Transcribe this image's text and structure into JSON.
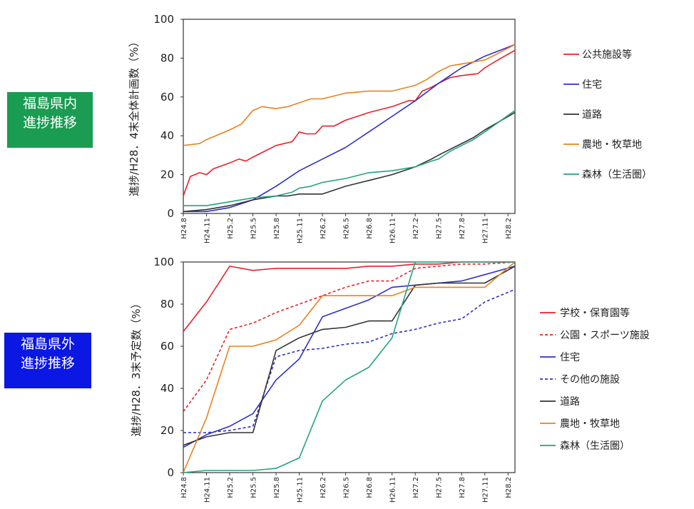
{
  "labels": {
    "inside": [
      "福島県内",
      "進捗推移"
    ],
    "outside": [
      "福島県外",
      "進捗推移"
    ]
  },
  "chart_data": [
    {
      "type": "line",
      "ylabel": "進捗/H28．4末全体計画数（%）",
      "ylim": [
        0,
        100
      ],
      "yticks": [
        0,
        20,
        40,
        60,
        80,
        100
      ],
      "categories": [
        "H24.8",
        "H24.11",
        "H25.2",
        "H25.5",
        "H25.8",
        "H25.11",
        "H26.2",
        "H26.5",
        "H26.8",
        "H26.11",
        "H27.2",
        "H27.5",
        "H27.8",
        "H27.11",
        "H28.2"
      ],
      "legend_position": "right",
      "series": [
        {
          "name": "公共施設等",
          "color": "#e8202a",
          "dash": false,
          "points": [
            [
              0,
              9
            ],
            [
              0.3,
              19
            ],
            [
              0.7,
              21
            ],
            [
              1,
              20
            ],
            [
              1.3,
              23
            ],
            [
              2,
              26
            ],
            [
              2.4,
              28
            ],
            [
              2.7,
              27
            ],
            [
              3,
              29
            ],
            [
              3.5,
              32
            ],
            [
              4,
              35
            ],
            [
              4.7,
              37
            ],
            [
              5,
              42
            ],
            [
              5.3,
              41
            ],
            [
              5.7,
              41
            ],
            [
              6,
              45
            ],
            [
              6.5,
              45
            ],
            [
              7,
              48
            ],
            [
              7.5,
              50
            ],
            [
              8,
              52
            ],
            [
              9,
              55
            ],
            [
              9.7,
              58
            ],
            [
              10,
              58
            ],
            [
              10.3,
              63
            ],
            [
              10.7,
              65
            ],
            [
              11,
              67
            ],
            [
              11.5,
              70
            ],
            [
              12,
              71
            ],
            [
              12.7,
              72
            ],
            [
              13,
              75
            ],
            [
              13.7,
              80
            ],
            [
              14.3,
              84
            ]
          ]
        },
        {
          "name": "住宅",
          "color": "#2e2fc9",
          "dash": false,
          "points": [
            [
              0,
              1
            ],
            [
              1,
              1
            ],
            [
              2,
              3
            ],
            [
              3,
              7
            ],
            [
              4,
              14
            ],
            [
              5,
              22
            ],
            [
              6,
              28
            ],
            [
              7,
              34
            ],
            [
              8,
              42
            ],
            [
              9,
              50
            ],
            [
              10,
              58
            ],
            [
              11,
              67
            ],
            [
              12,
              75
            ],
            [
              13,
              81
            ],
            [
              14.3,
              87
            ]
          ]
        },
        {
          "name": "道路",
          "color": "#333333",
          "dash": false,
          "points": [
            [
              0,
              1
            ],
            [
              1,
              2
            ],
            [
              2,
              4
            ],
            [
              3,
              7
            ],
            [
              3.5,
              8
            ],
            [
              4,
              9
            ],
            [
              4.5,
              9
            ],
            [
              5,
              10
            ],
            [
              6,
              10
            ],
            [
              7,
              14
            ],
            [
              8,
              17
            ],
            [
              9,
              20
            ],
            [
              10,
              24
            ],
            [
              10.7,
              28
            ],
            [
              11,
              30
            ],
            [
              11.5,
              33
            ],
            [
              12,
              36
            ],
            [
              12.5,
              39
            ],
            [
              13,
              43
            ],
            [
              14.3,
              52
            ]
          ]
        },
        {
          "name": "農地・牧草地",
          "color": "#e8821e",
          "dash": false,
          "points": [
            [
              0,
              35
            ],
            [
              0.7,
              36
            ],
            [
              1,
              38
            ],
            [
              2,
              43
            ],
            [
              2.5,
              46
            ],
            [
              3,
              53
            ],
            [
              3.4,
              55
            ],
            [
              4,
              54
            ],
            [
              4.5,
              55
            ],
            [
              5,
              57
            ],
            [
              5.5,
              59
            ],
            [
              6,
              59
            ],
            [
              7,
              62
            ],
            [
              8,
              63
            ],
            [
              9,
              63
            ],
            [
              10,
              66
            ],
            [
              10.5,
              69
            ],
            [
              11,
              73
            ],
            [
              11.5,
              76
            ],
            [
              12,
              77
            ],
            [
              12.5,
              78
            ],
            [
              13,
              79
            ],
            [
              13.5,
              82
            ],
            [
              14.3,
              87
            ]
          ]
        },
        {
          "name": "森林（生活圏）",
          "color": "#22a383",
          "dash": false,
          "points": [
            [
              0,
              4
            ],
            [
              1,
              4
            ],
            [
              2,
              6
            ],
            [
              3,
              8
            ],
            [
              4,
              9
            ],
            [
              4.7,
              11
            ],
            [
              5,
              13
            ],
            [
              5.5,
              14
            ],
            [
              6,
              16
            ],
            [
              7,
              18
            ],
            [
              8,
              21
            ],
            [
              9,
              22
            ],
            [
              10,
              24
            ],
            [
              10.7,
              27
            ],
            [
              11,
              28
            ],
            [
              11.5,
              32
            ],
            [
              12,
              35
            ],
            [
              12.5,
              38
            ],
            [
              13,
              42
            ],
            [
              14.3,
              53
            ]
          ]
        }
      ]
    },
    {
      "type": "line",
      "ylabel": "進捗/H28．3末予定数（%）",
      "ylim": [
        0,
        100
      ],
      "yticks": [
        0,
        20,
        40,
        60,
        80,
        100
      ],
      "categories": [
        "H24.8",
        "H24.11",
        "H25.2",
        "H25.5",
        "H25.8",
        "H25.11",
        "H26.2",
        "H26.5",
        "H26.8",
        "H26.11",
        "H27.2",
        "H27.5",
        "H27.8",
        "H27.11",
        "H28.2"
      ],
      "legend_position": "right",
      "series": [
        {
          "name": "学校・保育園等",
          "color": "#e8202a",
          "dash": false,
          "points": [
            [
              0,
              67
            ],
            [
              1,
              81
            ],
            [
              2,
              98
            ],
            [
              3,
              96
            ],
            [
              4,
              97
            ],
            [
              5,
              97
            ],
            [
              6,
              97
            ],
            [
              7,
              97
            ],
            [
              8,
              98
            ],
            [
              9,
              98
            ],
            [
              10,
              99
            ],
            [
              11,
              99
            ],
            [
              12,
              100
            ],
            [
              13,
              100
            ],
            [
              14.3,
              100
            ]
          ]
        },
        {
          "name": "公園・スポーツ施設",
          "color": "#e8202a",
          "dash": true,
          "points": [
            [
              0,
              29
            ],
            [
              1,
              44
            ],
            [
              2,
              68
            ],
            [
              3,
              71
            ],
            [
              4,
              76
            ],
            [
              5,
              80
            ],
            [
              6,
              84
            ],
            [
              7,
              88
            ],
            [
              8,
              91
            ],
            [
              9,
              91
            ],
            [
              10,
              97
            ],
            [
              11,
              98
            ],
            [
              12,
              99
            ],
            [
              13,
              99
            ],
            [
              14.3,
              100
            ]
          ]
        },
        {
          "name": "住宅",
          "color": "#2e2fc9",
          "dash": false,
          "points": [
            [
              0,
              12
            ],
            [
              1,
              18
            ],
            [
              2,
              22
            ],
            [
              3,
              28
            ],
            [
              4,
              44
            ],
            [
              5,
              54
            ],
            [
              6,
              74
            ],
            [
              7,
              78
            ],
            [
              8,
              82
            ],
            [
              9,
              88
            ],
            [
              10,
              89
            ],
            [
              11,
              90
            ],
            [
              12,
              91
            ],
            [
              13,
              94
            ],
            [
              14.3,
              98
            ]
          ]
        },
        {
          "name": "その他の施設",
          "color": "#2e2fc9",
          "dash": true,
          "points": [
            [
              0,
              19
            ],
            [
              1,
              19
            ],
            [
              2,
              20
            ],
            [
              3,
              22
            ],
            [
              4,
              55
            ],
            [
              5,
              58
            ],
            [
              6,
              59
            ],
            [
              7,
              61
            ],
            [
              8,
              62
            ],
            [
              9,
              66
            ],
            [
              10,
              68
            ],
            [
              11,
              71
            ],
            [
              12,
              73
            ],
            [
              13,
              81
            ],
            [
              14.3,
              87
            ]
          ]
        },
        {
          "name": "道路",
          "color": "#333333",
          "dash": false,
          "points": [
            [
              0,
              13
            ],
            [
              1,
              17
            ],
            [
              2,
              19
            ],
            [
              3,
              19
            ],
            [
              4,
              58
            ],
            [
              5,
              64
            ],
            [
              6,
              68
            ],
            [
              7,
              69
            ],
            [
              8,
              72
            ],
            [
              9,
              72
            ],
            [
              10,
              89
            ],
            [
              11,
              90
            ],
            [
              12,
              90
            ],
            [
              13,
              90
            ],
            [
              14.3,
              98
            ]
          ]
        },
        {
          "name": "農地・牧草地",
          "color": "#e8821e",
          "dash": false,
          "points": [
            [
              0,
              0
            ],
            [
              1,
              26
            ],
            [
              2,
              60
            ],
            [
              3,
              60
            ],
            [
              4,
              63
            ],
            [
              5,
              70
            ],
            [
              6,
              84
            ],
            [
              7,
              84
            ],
            [
              8,
              84
            ],
            [
              9,
              84
            ],
            [
              10,
              88
            ],
            [
              11,
              88
            ],
            [
              12,
              88
            ],
            [
              13,
              88
            ],
            [
              14.3,
              100
            ]
          ]
        },
        {
          "name": "森林（生活圏）",
          "color": "#22a383",
          "dash": false,
          "points": [
            [
              0,
              0
            ],
            [
              1,
              1
            ],
            [
              2,
              1
            ],
            [
              3,
              1
            ],
            [
              4,
              2
            ],
            [
              5,
              7
            ],
            [
              6,
              34
            ],
            [
              7,
              44
            ],
            [
              8,
              50
            ],
            [
              9,
              64
            ],
            [
              10,
              100
            ],
            [
              11,
              100
            ],
            [
              12,
              100
            ],
            [
              13,
              100
            ],
            [
              14.3,
              100
            ]
          ]
        }
      ]
    }
  ]
}
